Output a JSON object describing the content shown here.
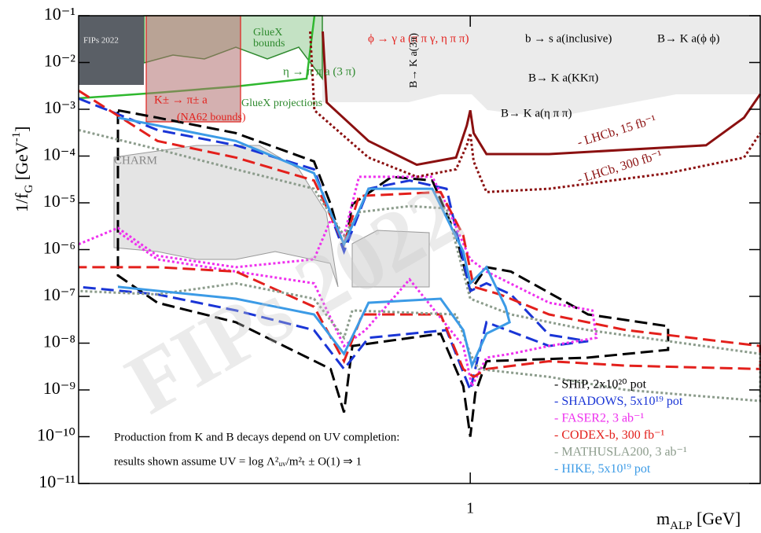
{
  "chart_data": {
    "type": "line",
    "x_label": [
      "m",
      "ALP",
      " [GeV]"
    ],
    "y_label": [
      "1/f",
      "G",
      " [GeV",
      "-1",
      "]"
    ],
    "xscale": "log",
    "yscale": "log",
    "xlim": [
      0.1,
      5.5
    ],
    "ylim": [
      1e-11,
      0.1
    ],
    "xticks": [
      1
    ],
    "yticks": [
      {
        "value": 1e-11,
        "label": "10⁻¹¹"
      },
      {
        "value": 1e-10,
        "label": "10⁻¹⁰"
      },
      {
        "value": 1e-09,
        "label": "10⁻⁹"
      },
      {
        "value": 1e-08,
        "label": "10⁻⁸"
      },
      {
        "value": 1e-07,
        "label": "10⁻⁷"
      },
      {
        "value": 1e-06,
        "label": "10⁻⁶"
      },
      {
        "value": 1e-05,
        "label": "10⁻⁵"
      },
      {
        "value": 0.0001,
        "label": "10⁻⁴"
      },
      {
        "value": 0.001,
        "label": "10⁻³"
      },
      {
        "value": 0.01,
        "label": "10⁻²"
      },
      {
        "value": 0.1,
        "label": "10⁻¹"
      }
    ],
    "legend": "lower right",
    "series": [
      {
        "name": "- SHiP, 2x10²⁰ pot",
        "color": "#000000",
        "dash": "dashed",
        "in_legend": true,
        "x": [
          0.126,
          0.159,
          0.252,
          0.399,
          0.44,
          0.476,
          0.5,
          0.63,
          0.8,
          0.92,
          1.0,
          1.1,
          1.27,
          2.0,
          3.2,
          3.2,
          2.0,
          1.1,
          1.03,
          1.0,
          0.96,
          0.84,
          0.5,
          0.476,
          0.44,
          0.252,
          0.159,
          0.126,
          0.126
        ],
        "values": [
          0.00095,
          0.00066,
          0.00031,
          7.7e-05,
          9.3e-06,
          9.1e-07,
          9.3e-06,
          3.6e-05,
          3e-05,
          2e-06,
          1.3e-07,
          4.2e-07,
          3.4e-07,
          4.1e-08,
          2.3e-08,
          7.2e-09,
          4.9e-09,
          4.1e-09,
          8.6e-10,
          1e-10,
          1.2e-09,
          1.6e-08,
          8.7e-09,
          3.3e-10,
          2.8e-09,
          2.8e-08,
          7.3e-08,
          2.8e-07,
          0.00095
        ]
      },
      {
        "name": "- SHADOWS, 5x10¹⁹ pot",
        "color": "#1a35d6",
        "dash": "dashed",
        "in_legend": true,
        "x": [
          0.1,
          0.159,
          0.252,
          0.399,
          0.476,
          0.55,
          0.7,
          0.87,
          1.0,
          1.1,
          1.27,
          1.59,
          2.0,
          1.59,
          1.1,
          1.0,
          0.87,
          0.55,
          0.476,
          0.399,
          0.252,
          0.159,
          0.1
        ],
        "values": [
          0.0017,
          0.00036,
          0.00017,
          5.2e-05,
          9.1e-07,
          2e-05,
          3e-05,
          2e-05,
          1.3e-07,
          1.9e-07,
          1.1e-07,
          1.5e-08,
          1.1e-08,
          8.7e-09,
          2.8e-08,
          1e-09,
          1.9e-08,
          1.3e-08,
          2.8e-09,
          1.9e-08,
          5e-08,
          1.1e-07,
          1.6e-07
        ]
      },
      {
        "name": "- FASER2, 3 ab⁻¹",
        "color": "#ee30ee",
        "dash": "dotted",
        "in_legend": true,
        "x": [
          0.1,
          0.126,
          0.159,
          0.252,
          0.399,
          0.44,
          0.476,
          0.52,
          0.8,
          0.86,
          1.0,
          1.1,
          1.59,
          2.05,
          2.1,
          1.59,
          1.27,
          1.1,
          1.01,
          0.96,
          0.7,
          0.54,
          0.476,
          0.399,
          0.252,
          0.159,
          0.126
        ],
        "values": [
          1.3e-06,
          2.9e-06,
          7.4e-07,
          4.2e-07,
          6.2e-07,
          4.3e-06,
          2e-06,
          3.6e-05,
          3.6e-05,
          1.1e-05,
          6.2e-07,
          3.4e-07,
          7.3e-08,
          5e-08,
          1.3e-08,
          8.7e-09,
          5.9e-09,
          4.9e-09,
          1.2e-09,
          8.7e-09,
          2.3e-07,
          1.9e-08,
          8.7e-09,
          1.9e-07,
          3.4e-07,
          6.2e-07,
          2.4e-06
        ]
      },
      {
        "name": "- CODEX-b, 300 fb⁻¹",
        "color": "#e3201c",
        "dash": "dashed",
        "in_legend": true,
        "x": [
          0.1,
          0.159,
          0.252,
          0.399,
          0.476,
          0.52,
          0.84,
          0.96,
          1.02,
          1.19,
          1.59,
          2.5,
          5.5,
          5.5,
          2.5,
          1.59,
          1.1,
          1.02,
          0.96,
          0.84,
          0.53,
          0.476,
          0.399,
          0.252,
          0.159,
          0.1
        ],
        "values": [
          0.0025,
          0.00021,
          9.3e-05,
          3e-05,
          1.3e-06,
          1.4e-05,
          1.7e-05,
          2e-06,
          1.6e-07,
          1.1e-07,
          4.1e-08,
          1.9e-08,
          8.7e-09,
          2.8e-09,
          3.3e-09,
          4.1e-09,
          2.8e-09,
          1.9e-09,
          2.8e-09,
          4.1e-08,
          4.1e-08,
          4.1e-09,
          6e-08,
          3.4e-07,
          4.2e-07,
          4.2e-07
        ]
      },
      {
        "name": "- MATHUSLA200, 3 ab⁻¹",
        "color": "#8c9c8c",
        "dash": "dotted",
        "in_legend": true,
        "x": [
          0.1,
          0.159,
          0.252,
          0.399,
          0.476,
          0.52,
          0.7,
          0.87,
          1.0,
          1.27,
          2.0,
          5.5,
          5.5,
          2.5,
          1.59,
          1.05,
          1.0,
          0.92,
          0.5,
          0.476,
          0.399,
          0.252,
          0.159,
          0.1
        ],
        "values": [
          0.00036,
          0.00014,
          5.2e-05,
          2e-05,
          2e-06,
          6.3e-06,
          8.5e-06,
          7.6e-06,
          8.9e-08,
          4.1e-08,
          1.9e-08,
          5.9e-09,
          5.8e-10,
          1e-09,
          1.9e-09,
          2.8e-09,
          5.9e-09,
          4.1e-08,
          5e-08,
          1.3e-08,
          8.9e-08,
          1.9e-07,
          1.1e-07,
          1.3e-07
        ]
      },
      {
        "name": "- HIKE, 5x10¹⁹ pot",
        "color": "#3c9be6",
        "dash": "solid",
        "in_legend": true,
        "x": [
          0.126,
          0.252,
          0.399,
          0.476,
          0.55,
          0.8,
          0.96,
          1.0,
          1.1,
          1.23,
          1.26,
          1.1,
          1.01,
          0.96,
          0.84,
          0.55,
          0.476,
          0.399,
          0.252,
          0.126
        ],
        "values": [
          0.00066,
          0.00021,
          4.3e-05,
          1.3e-06,
          2e-05,
          2e-05,
          9.1e-07,
          1.9e-07,
          4.2e-07,
          6e-08,
          2.8e-08,
          1.6e-08,
          3.3e-09,
          1.9e-08,
          8.9e-08,
          7.3e-08,
          5.9e-09,
          4.1e-08,
          8.9e-08,
          1.6e-07
        ]
      },
      {
        "name": "- LHCb, 15 fb⁻¹",
        "color": "#8b1010",
        "dash": "solid",
        "in_legend": false,
        "x": [
          0.42,
          0.43,
          0.55,
          0.73,
          0.92,
          0.98,
          1.0,
          1.02,
          1.1,
          1.59,
          4.0,
          5.0,
          5.5
        ],
        "values": [
          0.046,
          0.0014,
          0.00021,
          6.5e-05,
          9.3e-05,
          0.00045,
          0.00095,
          0.00031,
          0.00011,
          0.00011,
          0.00017,
          0.00066,
          0.0021
        ]
      },
      {
        "name": "- LHCb, 300 fb⁻¹",
        "color": "#8b1010",
        "dash": "dotted",
        "in_legend": false,
        "x": [
          0.39,
          0.4,
          0.55,
          0.73,
          0.92,
          0.98,
          1.0,
          1.02,
          1.1,
          1.59,
          3.2,
          5.0,
          5.5
        ],
        "values": [
          0.046,
          0.00095,
          9.3e-05,
          3.6e-05,
          5.2e-05,
          0.00017,
          0.00031,
          7.7e-05,
          1.7e-05,
          2e-05,
          4.3e-05,
          9.3e-05,
          0.00031
        ]
      }
    ],
    "annotations": [
      {
        "text": "FIPs 2022",
        "color": "#eeeeee"
      },
      {
        "text": "GlueX",
        "color": "#2f8a2f"
      },
      {
        "text": "bounds",
        "color": "#2f8a2f"
      },
      {
        "text": "η → π π a (3 π)",
        "color": "#2f8a2f"
      },
      {
        "text": "K± → π± a",
        "color": "#e3201c"
      },
      {
        "text": "(NA62 bounds)",
        "color": "#e3201c"
      },
      {
        "text": "GlueX projections",
        "color": "#2f8a2f"
      },
      {
        "text": "ϕ → γ a (π π γ, η π π)",
        "color": "#e3201c"
      },
      {
        "text": "B→ K a(3π)",
        "color": "#000000"
      },
      {
        "text": "b → s a(inclusive)",
        "color": "#000000"
      },
      {
        "text": "B→ K a(ϕ ϕ)",
        "color": "#000000"
      },
      {
        "text": "B→ K a(KKπ)",
        "color": "#000000"
      },
      {
        "text": "B→ K a(η π π)",
        "color": "#000000"
      },
      {
        "text": "CHARM",
        "color": "#888888"
      },
      {
        "text": "Production from K and B decays depend on UV completion:",
        "color": "#000000"
      },
      {
        "text": "results shown assume UV = log Λ²ᵤᵥ/m²ₜ ± O(1) ⇒ 1",
        "color": "#000000"
      },
      {
        "text": "FIPs 2022",
        "color": "#c8c8c8"
      }
    ]
  }
}
